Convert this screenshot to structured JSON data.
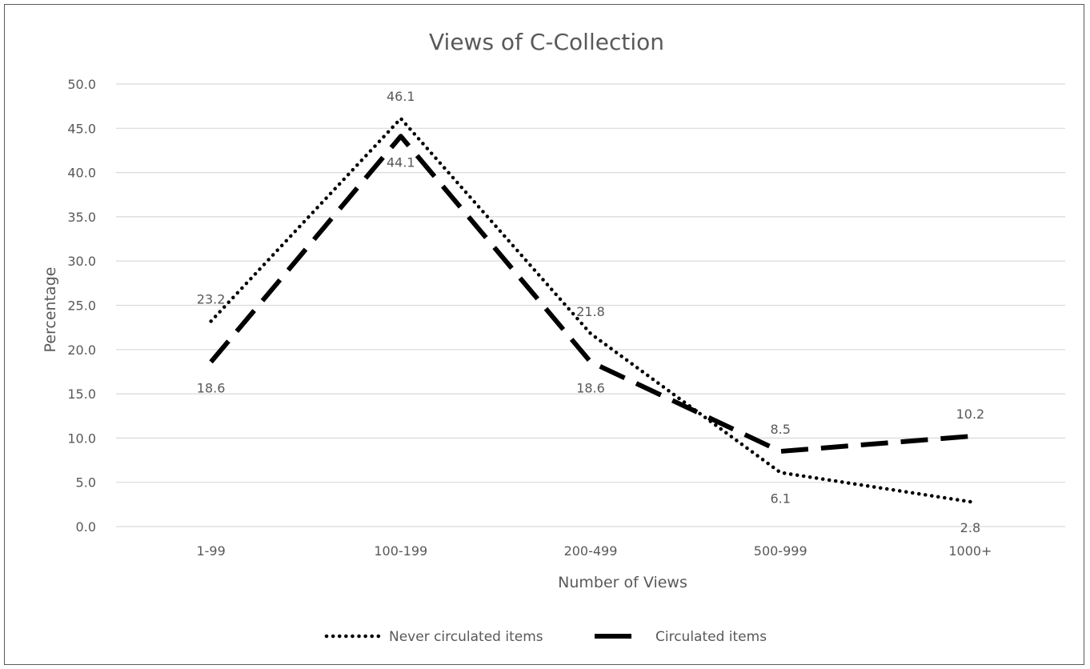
{
  "chart_data": {
    "type": "line",
    "title": "Views of C-Collection",
    "xlabel": "Number of Views",
    "ylabel": "Percentage",
    "categories": [
      "1-99",
      "100-199",
      "200-499",
      "500-999",
      "1000+"
    ],
    "ylim": [
      0,
      50
    ],
    "yticks": [
      "0.0",
      "5.0",
      "10.0",
      "15.0",
      "20.0",
      "25.0",
      "30.0",
      "35.0",
      "40.0",
      "45.0",
      "50.0"
    ],
    "grid": true,
    "legend_position": "bottom",
    "series": [
      {
        "name": "Never circulated items",
        "values": [
          23.2,
          46.1,
          21.8,
          6.1,
          2.8
        ],
        "labels": [
          "23.2",
          "46.1",
          "21.8",
          "6.1",
          "2.8"
        ],
        "style": "dotted",
        "color": "#000000"
      },
      {
        "name": "Circulated items",
        "values": [
          18.6,
          44.1,
          18.6,
          8.5,
          10.2
        ],
        "labels": [
          "18.6",
          "44.1",
          "18.6",
          "8.5",
          "10.2"
        ],
        "style": "dashed",
        "color": "#000000"
      }
    ],
    "gridline_color": "#d9d9d9",
    "text_color": "#595959"
  }
}
